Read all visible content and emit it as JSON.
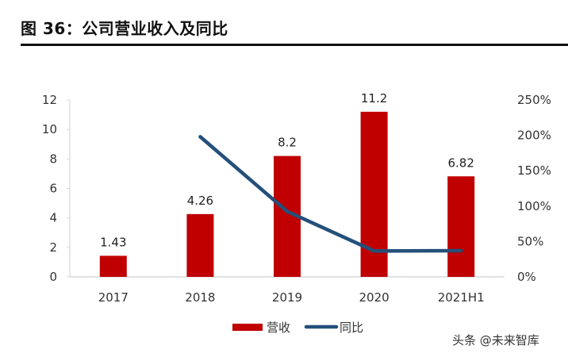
{
  "header": {
    "title": "图 36：公司营业收入及同比"
  },
  "chart_data": {
    "type": "bar",
    "title": "图 36：公司营业收入及同比",
    "xlabel": "",
    "ylabel": "",
    "categories": [
      "2017",
      "2018",
      "2019",
      "2020",
      "2021H1"
    ],
    "series": [
      {
        "name": "营收",
        "type": "bar",
        "axis": "left",
        "color": "#c00000",
        "values": [
          1.43,
          4.26,
          8.2,
          11.2,
          6.82
        ],
        "labels": [
          "1.43",
          "4.26",
          "8.2",
          "11.2",
          "6.82"
        ]
      },
      {
        "name": "同比",
        "type": "line",
        "axis": "right",
        "color": "#24507a",
        "values": [
          null,
          1.98,
          0.925,
          0.366,
          0.37
        ]
      }
    ],
    "ylim": [
      0,
      12
    ],
    "yticks": [
      "0",
      "2",
      "4",
      "6",
      "8",
      "10",
      "12"
    ],
    "ytick_values": [
      0,
      2,
      4,
      6,
      8,
      10,
      12
    ],
    "y2lim": [
      0,
      2.5
    ],
    "y2ticks": [
      "0%",
      "50%",
      "100%",
      "150%",
      "200%",
      "250%"
    ],
    "y2tick_values": [
      0,
      0.5,
      1.0,
      1.5,
      2.0,
      2.5
    ],
    "grid": false,
    "legend": {
      "position": "bottom",
      "entries": [
        "营收",
        "同比"
      ]
    }
  },
  "watermark": "头条 @未来智库"
}
